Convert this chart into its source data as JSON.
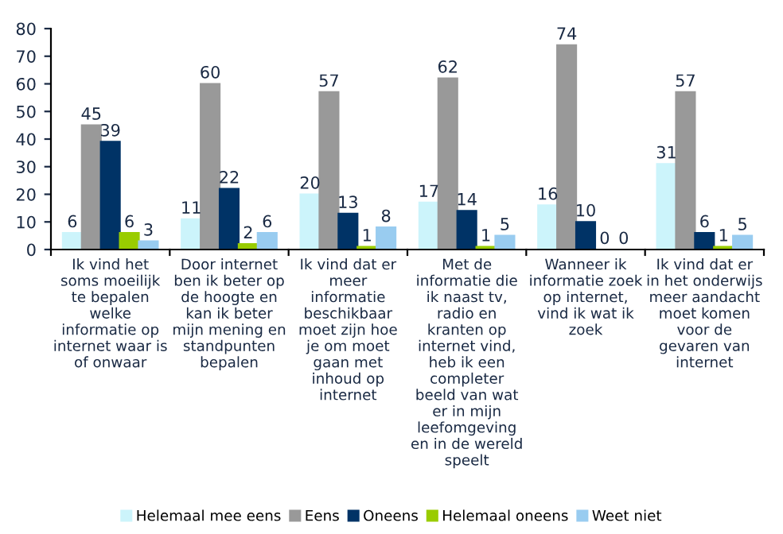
{
  "chart_data": {
    "type": "bar",
    "categories": [
      "Ik vind het\nsoms moeilijk\nte bepalen\nwelke\ninformatie op\ninternet waar is\nof onwaar",
      "Door internet\nben ik beter op\nde hoogte en\nkan ik beter\nmijn mening en\nstandpunten\nbepalen",
      "Ik vind dat er\nmeer\ninformatie\nbeschikbaar\nmoet zijn hoe\nje om moet\ngaan met\ninhoud op\ninternet",
      "Met de\ninformatie die\nik naast tv,\nradio en\nkranten op\ninternet vind,\nheb ik een\ncompleter\nbeeld van wat\ner in mijn\nleefomgeving\nen in de wereld\nspeelt",
      "Wanneer ik\ninformatie zoek\nop internet,\nvind ik wat ik\nzoek",
      "Ik vind dat er\nin het onderwijs\nmeer aandacht\nmoet komen\nvoor de\ngevaren van\ninternet"
    ],
    "series": [
      {
        "name": "Helemaal mee eens",
        "color": "#ccf4fb",
        "values": [
          6,
          11,
          20,
          17,
          16,
          31
        ]
      },
      {
        "name": "Eens",
        "color": "#999999",
        "values": [
          45,
          60,
          57,
          62,
          74,
          57
        ]
      },
      {
        "name": "Oneens",
        "color": "#003366",
        "values": [
          39,
          22,
          13,
          14,
          10,
          6
        ]
      },
      {
        "name": "Helemaal oneens",
        "color": "#99cc00",
        "values": [
          6,
          2,
          1,
          1,
          0,
          1
        ]
      },
      {
        "name": "Weet niet",
        "color": "#99ccf0",
        "values": [
          3,
          6,
          8,
          5,
          0,
          5
        ]
      }
    ],
    "ylim": [
      0,
      80
    ],
    "yticks": [
      0,
      10,
      20,
      30,
      40,
      50,
      60,
      70,
      80
    ],
    "data_labels": true,
    "legend": "bottom",
    "grid": false
  }
}
